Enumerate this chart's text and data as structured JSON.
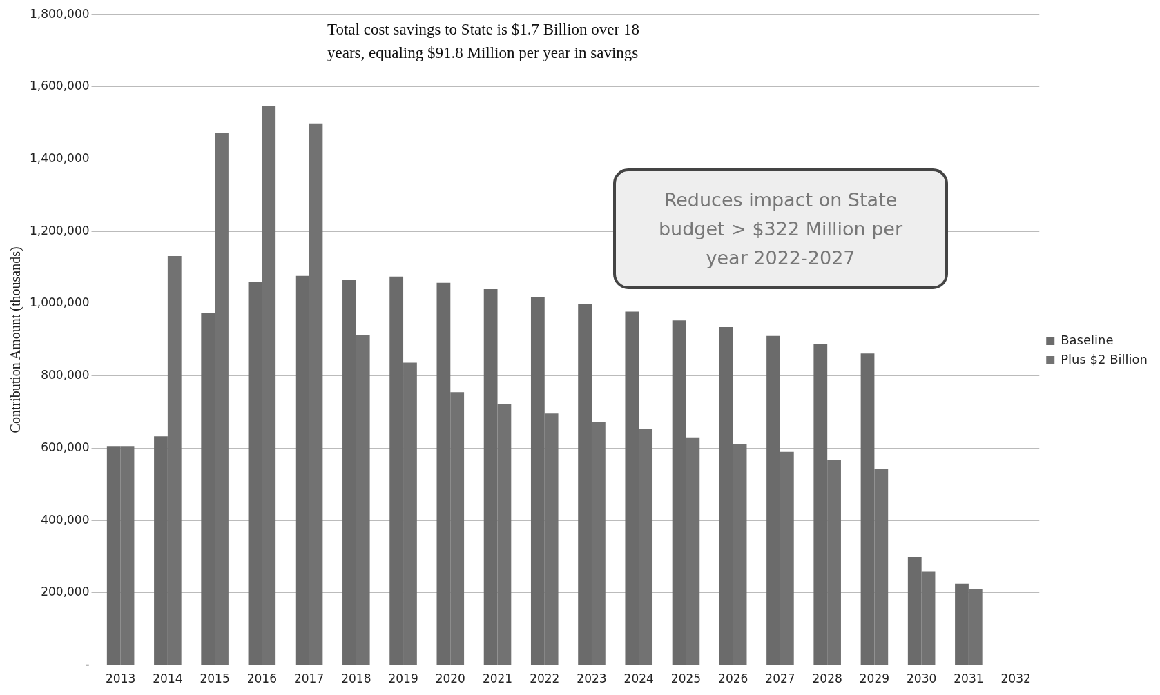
{
  "chart_data": {
    "type": "bar",
    "ylabel": "Contribution Amount (thousands)",
    "categories": [
      "2013",
      "2014",
      "2015",
      "2016",
      "2017",
      "2018",
      "2019",
      "2020",
      "2021",
      "2022",
      "2023",
      "2024",
      "2025",
      "2026",
      "2027",
      "2028",
      "2029",
      "2030",
      "2031",
      "2032"
    ],
    "series": [
      {
        "name": "Baseline",
        "color": "#6b6b6b",
        "values": [
          606000,
          633000,
          974000,
          1060000,
          1077000,
          1066000,
          1075000,
          1058000,
          1040000,
          1019000,
          999000,
          978000,
          954000,
          935000,
          911000,
          888000,
          862000,
          299000,
          225000,
          null
        ]
      },
      {
        "name": "Plus $2 Billion",
        "color": "#727272",
        "values": [
          606000,
          1132000,
          1474000,
          1548000,
          1499000,
          913000,
          837000,
          755000,
          723000,
          696000,
          673000,
          653000,
          630000,
          612000,
          590000,
          567000,
          542000,
          258000,
          211000,
          null
        ]
      }
    ],
    "ylim": [
      0,
      1800000
    ],
    "yticks": [
      {
        "value": 0,
        "label": "-"
      },
      {
        "value": 200000,
        "label": "200,000"
      },
      {
        "value": 400000,
        "label": "400,000"
      },
      {
        "value": 600000,
        "label": "600,000"
      },
      {
        "value": 800000,
        "label": "800,000"
      },
      {
        "value": 1000000,
        "label": "1,000,000"
      },
      {
        "value": 1200000,
        "label": "1,200,000"
      },
      {
        "value": 1400000,
        "label": "1,400,000"
      },
      {
        "value": 1600000,
        "label": "1,600,000"
      },
      {
        "value": 1800000,
        "label": "1,800,000"
      }
    ],
    "grid": "y",
    "legend": "right",
    "annotations": [
      "Total cost savings to State is $1.7 Billion over 18 years, equaling $91.8 Million per year in savings",
      "Reduces impact on State budget > $322 Million per year 2022-2027"
    ]
  }
}
